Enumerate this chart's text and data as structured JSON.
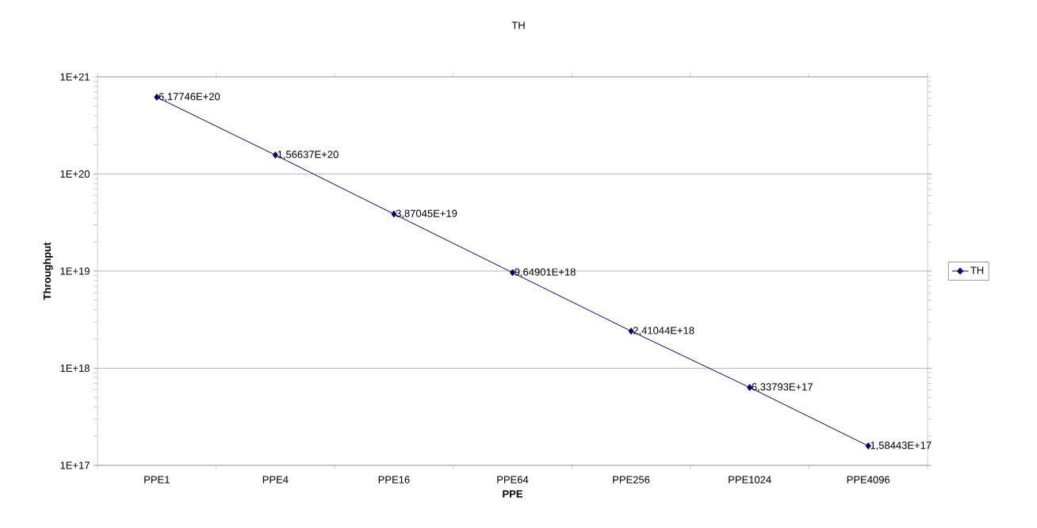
{
  "chart_data": {
    "type": "line",
    "title": "TH",
    "xlabel": "PPE",
    "ylabel": "Throughput",
    "categories": [
      "PPE1",
      "PPE4",
      "PPE16",
      "PPE64",
      "PPE256",
      "PPE1024",
      "PPE4096"
    ],
    "series": [
      {
        "name": "TH",
        "color": "#000080",
        "values": [
          6.17746e+20,
          1.56637e+20,
          3.87045e+19,
          9.64901e+18,
          2.41044e+18,
          6.33793e+17,
          1.58443e+17
        ],
        "value_labels": [
          "6,17746E+20",
          "1,56637E+20",
          "3,87045E+19",
          "9,64901E+18",
          "2,41044E+18",
          "6,33793E+17",
          "1,58443E+17"
        ]
      }
    ],
    "log": "y",
    "ylim": [
      1e+17,
      1e+21
    ],
    "yticks": [
      {
        "value": 1e+17,
        "label": "1E+17"
      },
      {
        "value": 1e+18,
        "label": "1E+18"
      },
      {
        "value": 1e+19,
        "label": "1E+19"
      },
      {
        "value": 1e+20,
        "label": "1E+20"
      },
      {
        "value": 1e+21,
        "label": "1E+21"
      }
    ],
    "grid": "y",
    "legend": "right",
    "marker": "diamond",
    "line_style": "solid"
  }
}
